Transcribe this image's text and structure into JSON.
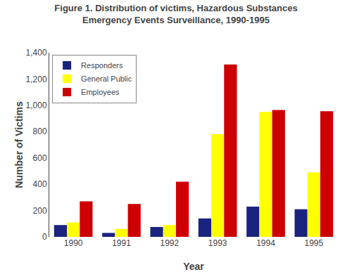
{
  "chart_data": {
    "type": "bar",
    "title": "Figure 1. Distribution of victims, Hazardous Substances",
    "subtitle": "Emergency Events Surveillance, 1990-1995",
    "x_label": "Year",
    "y_label": "Number of Victims",
    "categories": [
      "1990",
      "1991",
      "1992",
      "1993",
      "1994",
      "1995"
    ],
    "series": [
      {
        "name": "Responders",
        "color": "#1a237e",
        "values": [
          90,
          30,
          75,
          140,
          230,
          210
        ]
      },
      {
        "name": "General Public",
        "color": "#ffff00",
        "values": [
          110,
          60,
          90,
          780,
          950,
          490
        ]
      },
      {
        "name": "Employees",
        "color": "#cc0000",
        "values": [
          270,
          250,
          420,
          1310,
          965,
          955
        ]
      }
    ],
    "ylim": [
      0,
      1400
    ],
    "yticks": [
      0,
      200,
      400,
      600,
      800,
      {
        "value": 1000,
        "label": "1,000"
      },
      {
        "value": 1200,
        "label": "1,200"
      },
      {
        "value": 1400,
        "label": "1,400"
      }
    ],
    "grid": false,
    "legend": "upper left"
  }
}
